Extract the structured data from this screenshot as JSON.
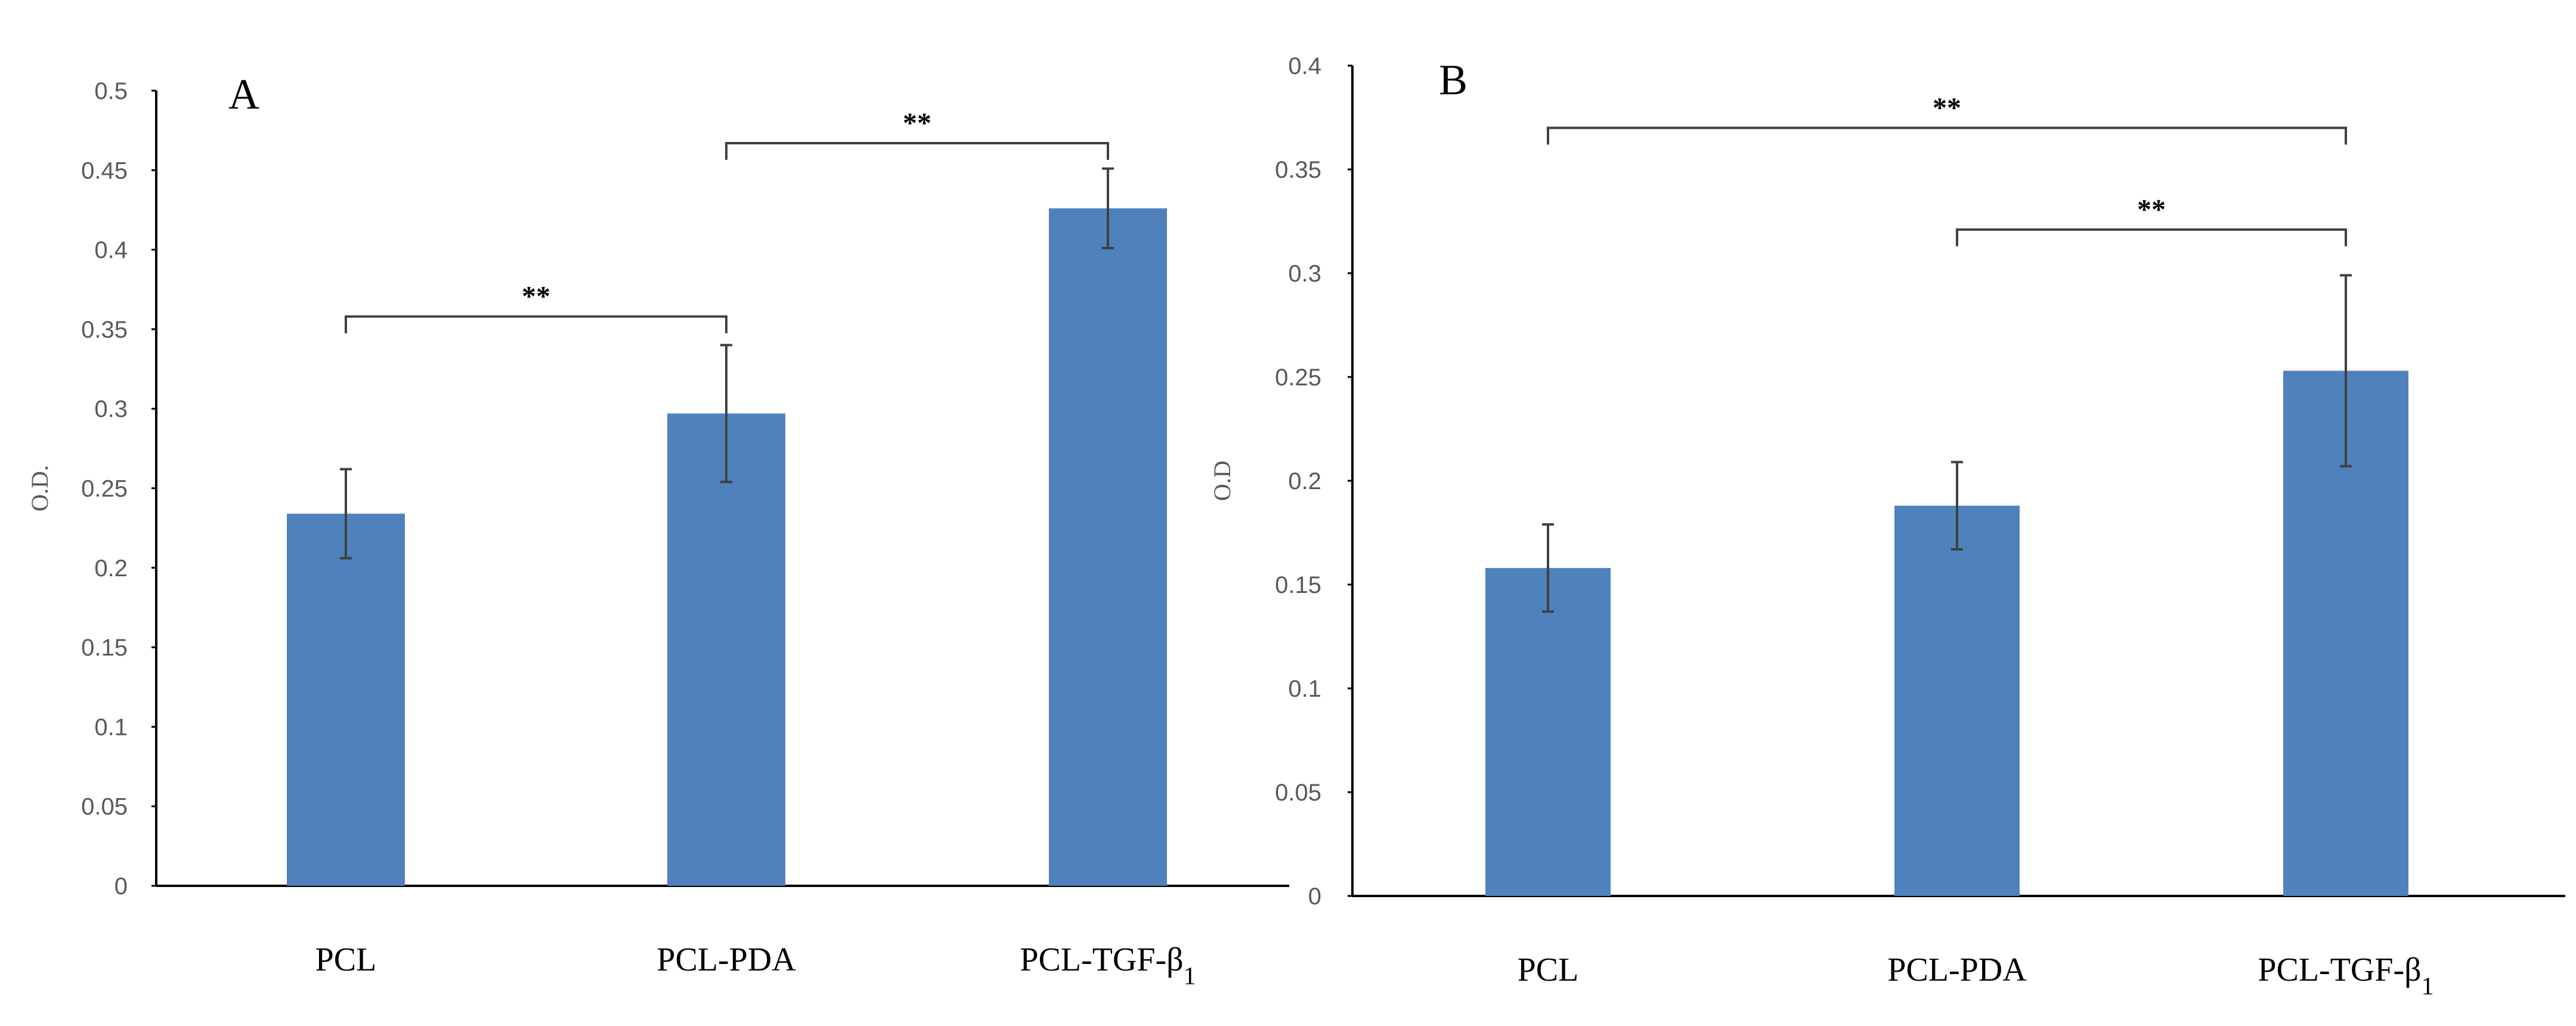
{
  "chart_data": [
    {
      "type": "bar",
      "panel_label": "A",
      "categories": [
        "PCL",
        "PCL-PDA",
        "PCL-TGF-β1"
      ],
      "category_parts": [
        [
          "PCL",
          ""
        ],
        [
          "PCL-PDA",
          ""
        ],
        [
          "PCL-TGF-β",
          "1"
        ]
      ],
      "values": [
        0.234,
        0.297,
        0.426
      ],
      "errors": [
        0.028,
        0.043,
        0.025
      ],
      "ylabel": "O.D.",
      "ylim": [
        0,
        0.5
      ],
      "yticks": [
        "0",
        "0.05",
        "0.1",
        "0.15",
        "0.2",
        "0.25",
        "0.3",
        "0.35",
        "0.4",
        "0.45",
        "0.5"
      ],
      "color": "#4f81bd",
      "significance": [
        {
          "from": 0,
          "to": 1,
          "y": 0.358,
          "label": "**"
        },
        {
          "from": 1,
          "to": 2,
          "y": 0.467,
          "label": "**"
        }
      ]
    },
    {
      "type": "bar",
      "panel_label": "B",
      "categories": [
        "PCL",
        "PCL-PDA",
        "PCL-TGF-β1"
      ],
      "category_parts": [
        [
          "PCL",
          ""
        ],
        [
          "PCL-PDA",
          ""
        ],
        [
          "PCL-TGF-β",
          "1"
        ]
      ],
      "values": [
        0.158,
        0.188,
        0.253
      ],
      "errors": [
        0.021,
        0.021,
        0.046
      ],
      "ylabel": "O.D",
      "ylim": [
        0,
        0.4
      ],
      "yticks": [
        "0",
        "0.05",
        "0.1",
        "0.15",
        "0.2",
        "0.25",
        "0.3",
        "0.35",
        "0.4"
      ],
      "color": "#4f81bd",
      "significance": [
        {
          "from": 0,
          "to": 2,
          "y": 0.37,
          "label": "**"
        },
        {
          "from": 1,
          "to": 2,
          "y": 0.321,
          "label": "**"
        }
      ]
    }
  ]
}
